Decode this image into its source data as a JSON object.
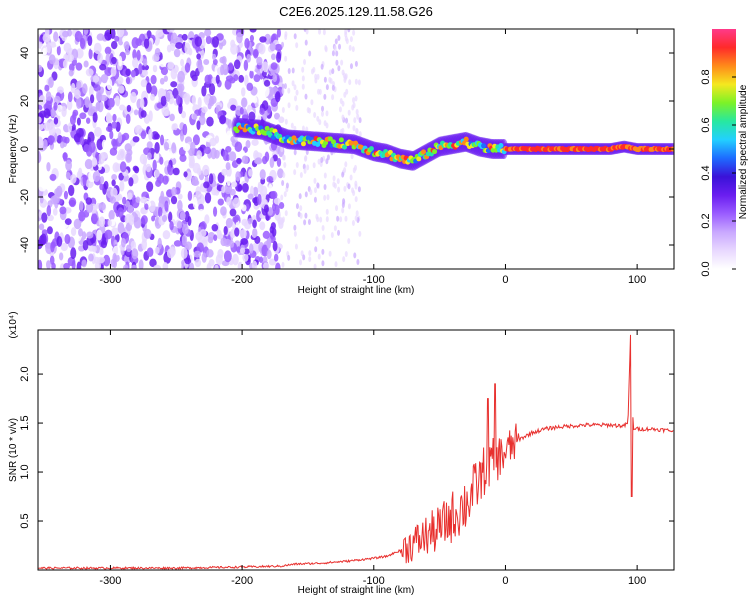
{
  "title": "C2E6.2025.129.11.58.G26",
  "colors": {
    "snr_line": "#e8302e",
    "colormap": [
      "#ffffff",
      "#e8d8ff",
      "#c9a8ff",
      "#9a5cff",
      "#6a1ef0",
      "#3a12d8",
      "#1e6bff",
      "#22d0ff",
      "#27e8a0",
      "#7cf227",
      "#f5e81f",
      "#ff8a1a",
      "#ff2a2a",
      "#ff3a8a"
    ]
  },
  "chart_data": [
    {
      "type": "heatmap",
      "name": "spectrogram",
      "xlabel": "Height of straight line (km)",
      "ylabel": "Frequency (Hz)",
      "xlim": [
        -355,
        128
      ],
      "ylim": [
        -50,
        50
      ],
      "xticks": [
        -300,
        -200,
        -100,
        0,
        100
      ],
      "xtick_labels": [
        "-300",
        "-200",
        "-100",
        "0",
        "100"
      ],
      "yticks": [
        -40,
        -20,
        0,
        20,
        40
      ],
      "ytick_labels": [
        "-40",
        "-20",
        "0",
        "20",
        "40"
      ],
      "colorbar": {
        "label": "Normalized spectral amplitude",
        "range": [
          0,
          1
        ],
        "ticks": [
          0.0,
          0.2,
          0.4,
          0.6,
          0.8
        ],
        "tick_labels": [
          "0.0",
          "0.2",
          "0.4",
          "0.6",
          "0.8"
        ]
      },
      "signal_trace": {
        "x": [
          -205,
          -185,
          -165,
          -140,
          -115,
          -100,
          -90,
          -80,
          -70,
          -60,
          -50,
          -40,
          -30,
          -20,
          -10,
          0,
          20,
          50,
          80,
          90,
          100,
          128
        ],
        "y": [
          9,
          8,
          4,
          3,
          2,
          -1,
          -2,
          -4,
          -5,
          -2,
          1,
          2,
          3,
          1,
          0,
          0,
          0,
          0,
          0,
          1,
          0,
          0
        ]
      },
      "noise_region_x": [
        -355,
        -170
      ]
    },
    {
      "type": "line",
      "name": "snr",
      "xlabel": "Height of straight line (km)",
      "ylabel": "SNR (10 * v/v)",
      "multiplier_label": "(x10⁴)",
      "xlim": [
        -355,
        128
      ],
      "ylim": [
        0,
        2.45
      ],
      "xticks": [
        -300,
        -200,
        -100,
        0,
        100
      ],
      "xtick_labels": [
        "-300",
        "-200",
        "-100",
        "0",
        "100"
      ],
      "yticks": [
        0.5,
        1.0,
        1.5,
        2.0
      ],
      "ytick_labels": [
        "0.5",
        "1.0",
        "1.5",
        "2.0"
      ],
      "series": [
        {
          "x": [
            -355,
            -300,
            -250,
            -200,
            -170,
            -160,
            -140,
            -120,
            -100,
            -90,
            -80,
            -70,
            -60,
            -50,
            -40,
            -30,
            -20,
            -15,
            -10,
            -5,
            0,
            10,
            20,
            30,
            40,
            50,
            60,
            70,
            80,
            90,
            93,
            95,
            97,
            100,
            110,
            120,
            128
          ],
          "y": [
            0.02,
            0.02,
            0.02,
            0.03,
            0.04,
            0.06,
            0.07,
            0.09,
            0.12,
            0.14,
            0.2,
            0.27,
            0.35,
            0.42,
            0.55,
            0.68,
            0.9,
            1.05,
            1.1,
            1.15,
            1.2,
            1.33,
            1.4,
            1.44,
            1.46,
            1.47,
            1.48,
            1.48,
            1.48,
            1.47,
            1.5,
            2.4,
            1.45,
            1.44,
            1.44,
            1.43,
            1.42
          ],
          "spikes": [
            {
              "x": -8,
              "y": 1.9
            },
            {
              "x": -13,
              "y": 1.75
            },
            {
              "x": 96,
              "y": 0.75
            }
          ]
        }
      ]
    }
  ]
}
